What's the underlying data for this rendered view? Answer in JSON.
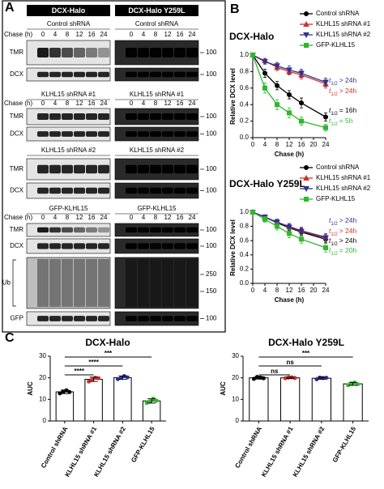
{
  "panel_labels": [
    "A",
    "B",
    "C"
  ],
  "blots": {
    "columns": [
      "DCX-Halo",
      "DCX-Halo Y259L"
    ],
    "chase_label": "Chase (h)",
    "timepoints": [
      "0",
      "4",
      "8",
      "12",
      "16",
      "24"
    ],
    "panels": [
      {
        "title": "Control shRNA",
        "chase": true,
        "rows": [
          {
            "label": "TMR",
            "markers": [
              "100"
            ]
          },
          {
            "label": "DCX",
            "markers": [
              "100"
            ]
          }
        ]
      },
      {
        "title": "KLHL15 shRNA #1",
        "chase": true,
        "rows": [
          {
            "label": "TMR",
            "markers": [
              "100"
            ]
          },
          {
            "label": "DCX",
            "markers": [
              "100"
            ]
          }
        ]
      },
      {
        "title": "KLHL15 shRNA #2",
        "chase": false,
        "rows": [
          {
            "label": "TMR",
            "markers": [
              "100"
            ]
          },
          {
            "label": "DCX",
            "markers": [
              "100"
            ]
          }
        ]
      },
      {
        "title": "GFP-KLHL15",
        "chase": true,
        "rows": [
          {
            "label": "TMR",
            "markers": [
              "100"
            ]
          },
          {
            "label": "DCX",
            "markers": [
              "100"
            ]
          },
          {
            "label": "Ub",
            "markers": [
              "250",
              "150"
            ]
          },
          {
            "label": "GFP",
            "markers": [
              "100"
            ]
          }
        ]
      }
    ]
  },
  "chart_data": [
    {
      "type": "line",
      "title": "DCX-Halo",
      "xlabel": "Chase (h)",
      "ylabel": "Relative DCX level",
      "x": [
        0,
        4,
        8,
        12,
        16,
        24
      ],
      "xlim": [
        0,
        24
      ],
      "xticks": [
        0,
        4,
        8,
        12,
        16,
        20,
        24
      ],
      "ylim": [
        0,
        1
      ],
      "yticks": [
        {
          "value": 0,
          "label": "0.0"
        },
        0.2,
        0.4,
        0.6,
        0.8,
        {
          "value": 1,
          "label": "1.0"
        }
      ],
      "legend": "upper right",
      "series": [
        {
          "name": "Control shRNA",
          "color": "#000000",
          "marker": "circle",
          "values": [
            1,
            0.78,
            0.63,
            0.52,
            0.42,
            0.25
          ],
          "errors": [
            0,
            0.05,
            0.05,
            0.05,
            0.06,
            0.05
          ]
        },
        {
          "name": "KLHL15 shRNA #1",
          "color": "#d0312d",
          "marker": "triangle-up",
          "values": [
            1,
            0.93,
            0.85,
            0.8,
            0.76,
            0.65
          ],
          "errors": [
            0,
            0.03,
            0.04,
            0.04,
            0.05,
            0.05
          ]
        },
        {
          "name": "KLHL15 shRNA #2",
          "color": "#2e3192",
          "marker": "triangle-down",
          "values": [
            1,
            0.92,
            0.87,
            0.82,
            0.78,
            0.67
          ],
          "errors": [
            0,
            0.03,
            0.04,
            0.05,
            0.05,
            0.05
          ]
        },
        {
          "name": "GFP-KLHL15",
          "color": "#2eb82e",
          "marker": "square",
          "values": [
            1,
            0.6,
            0.4,
            0.3,
            0.2,
            0.12
          ],
          "errors": [
            0,
            0.06,
            0.06,
            0.06,
            0.05,
            0.04
          ]
        }
      ],
      "annotations": [
        {
          "prefix": "t",
          "sub": "1/2",
          "text": "> 24h",
          "color": "#2e3192"
        },
        {
          "prefix": "t",
          "sub": "1/2",
          "text": "> 24h",
          "color": "#d0312d"
        },
        {
          "prefix": "t",
          "sub": "1/2",
          "text": "= 16h",
          "color": "#000000"
        },
        {
          "prefix": "t",
          "sub": "1/2",
          "text": "= 5h",
          "color": "#2eb82e"
        }
      ]
    },
    {
      "type": "line",
      "title": "DCX-Halo Y259L",
      "xlabel": "Chase (h)",
      "ylabel": "Relative DCX level",
      "x": [
        0,
        4,
        8,
        12,
        16,
        24
      ],
      "xlim": [
        0,
        24
      ],
      "xticks": [
        0,
        4,
        8,
        12,
        16,
        20,
        24
      ],
      "ylim": [
        0,
        1
      ],
      "yticks": [
        {
          "value": 0,
          "label": "0.0"
        },
        0.2,
        0.4,
        0.6,
        0.8,
        {
          "value": 1,
          "label": "1.0"
        }
      ],
      "legend": "upper right",
      "series": [
        {
          "name": "Control shRNA",
          "color": "#000000",
          "marker": "circle",
          "values": [
            1,
            0.93,
            0.85,
            0.78,
            0.72,
            0.62
          ],
          "errors": [
            0,
            0.03,
            0.04,
            0.04,
            0.05,
            0.05
          ]
        },
        {
          "name": "KLHL15 shRNA #1",
          "color": "#d0312d",
          "marker": "triangle-up",
          "values": [
            1,
            0.93,
            0.86,
            0.8,
            0.74,
            0.65
          ],
          "errors": [
            0,
            0.03,
            0.04,
            0.04,
            0.05,
            0.05
          ]
        },
        {
          "name": "KLHL15 shRNA #2",
          "color": "#2e3192",
          "marker": "triangle-down",
          "values": [
            1,
            0.93,
            0.86,
            0.79,
            0.73,
            0.64
          ],
          "errors": [
            0,
            0.03,
            0.04,
            0.04,
            0.05,
            0.05
          ]
        },
        {
          "name": "GFP-KLHL15",
          "color": "#2eb82e",
          "marker": "square",
          "values": [
            1,
            0.9,
            0.8,
            0.7,
            0.62,
            0.5
          ],
          "errors": [
            0,
            0.04,
            0.05,
            0.06,
            0.06,
            0.06
          ]
        }
      ],
      "annotations": [
        {
          "prefix": "t",
          "sub": "1/2",
          "text": "> 24h",
          "color": "#2e3192"
        },
        {
          "prefix": "t",
          "sub": "1/2",
          "text": "> 24h",
          "color": "#d0312d"
        },
        {
          "prefix": "t",
          "sub": "1/2",
          "text": "> 24h",
          "color": "#000000"
        },
        {
          "prefix": "t",
          "sub": "1/2",
          "text": "= 20h",
          "color": "#2eb82e"
        }
      ]
    },
    {
      "type": "bar",
      "title": "DCX-Halo",
      "ylabel": "AUC",
      "categories": [
        "Control shRNA",
        "KLHL15 shRNA #1",
        "KLHL15 shRNA #2",
        "GFP-KLHL15"
      ],
      "values": [
        13.5,
        19.3,
        20.1,
        9.3
      ],
      "errors": [
        0.8,
        1.0,
        0.8,
        1.0
      ],
      "points": [
        [
          12.8,
          13.6,
          14.2,
          13.4
        ],
        [
          18.3,
          19.1,
          20.0,
          19.8
        ],
        [
          19.4,
          20.0,
          20.8,
          20.2
        ],
        [
          8.4,
          9.1,
          10.3,
          9.4
        ]
      ],
      "point_colors": [
        "#000000",
        "#d0312d",
        "#2e3192",
        "#2eb82e"
      ],
      "ylim": [
        0,
        30
      ],
      "yticks": [
        0,
        10,
        20,
        30
      ],
      "comparisons": [
        {
          "pair": [
            0,
            3
          ],
          "label": "***"
        },
        {
          "pair": [
            0,
            2
          ],
          "label": "****"
        },
        {
          "pair": [
            0,
            1
          ],
          "label": "****"
        }
      ]
    },
    {
      "type": "bar",
      "title": "DCX-Halo Y259L",
      "ylabel": "AUC",
      "categories": [
        "Control shRNA",
        "KLHL15 shRNA #1",
        "KLHL15 shRNA #2",
        "GFP-KLHL15"
      ],
      "values": [
        20.0,
        20.0,
        19.8,
        17.2
      ],
      "errors": [
        0.6,
        0.3,
        0.5,
        0.7
      ],
      "points": [
        [
          19.5,
          20.4,
          20.1,
          19.8
        ],
        [
          19.8,
          20.1,
          20.2,
          19.9
        ],
        [
          19.3,
          20.1,
          19.9,
          20.0
        ],
        [
          16.6,
          17.4,
          17.8,
          17.0
        ]
      ],
      "point_colors": [
        "#000000",
        "#d0312d",
        "#2e3192",
        "#2eb82e"
      ],
      "ylim": [
        0,
        30
      ],
      "yticks": [
        0,
        10,
        20,
        30
      ],
      "comparisons": [
        {
          "pair": [
            0,
            3
          ],
          "label": "***"
        },
        {
          "pair": [
            0,
            2
          ],
          "label": "ns"
        },
        {
          "pair": [
            0,
            1
          ],
          "label": "ns"
        }
      ]
    }
  ]
}
